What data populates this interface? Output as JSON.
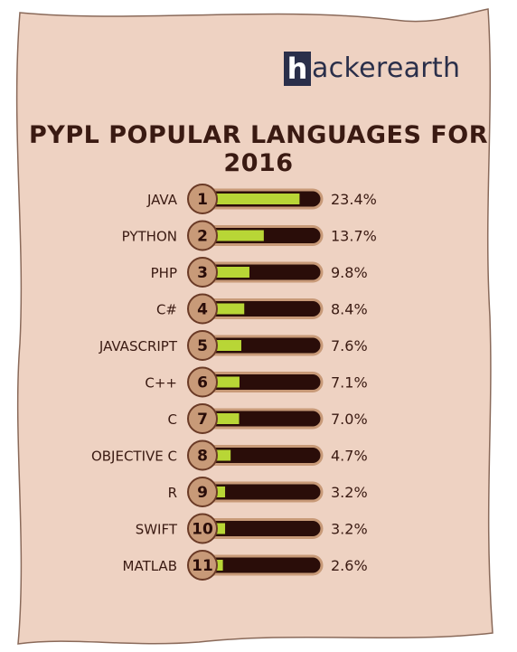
{
  "brand": {
    "logo_letter": "h",
    "logo_rest": "ackerearth",
    "color": "#2a2f4a"
  },
  "colors": {
    "paper": "#eed2c2",
    "paper_edge": "#8a6a5a",
    "bar_track": "#2a0d09",
    "bar_fill": "#b8d636",
    "badge": "#c89a78",
    "text": "#3a1a12"
  },
  "chart_data": {
    "type": "bar",
    "title": "PYPL POPULAR LANGUAGES FOR 2016",
    "categories": [
      "JAVA",
      "PYTHON",
      "PHP",
      "C#",
      "JAVASCRIPT",
      "C++",
      "C",
      "OBJECTIVE C",
      "R",
      "SWIFT",
      "MATLAB"
    ],
    "ranks": [
      "1",
      "2",
      "3",
      "4",
      "5",
      "6",
      "7",
      "8",
      "9",
      "10",
      "11"
    ],
    "values": [
      23.4,
      13.7,
      9.8,
      8.4,
      7.6,
      7.1,
      7.0,
      4.7,
      3.2,
      3.2,
      2.6
    ],
    "value_labels": [
      "23.4%",
      "13.7%",
      "9.8%",
      "8.4%",
      "7.6%",
      "7.1%",
      "7.0%",
      "4.7%",
      "3.2%",
      "3.2%",
      "2.6%"
    ],
    "xlim": [
      0,
      26
    ]
  }
}
